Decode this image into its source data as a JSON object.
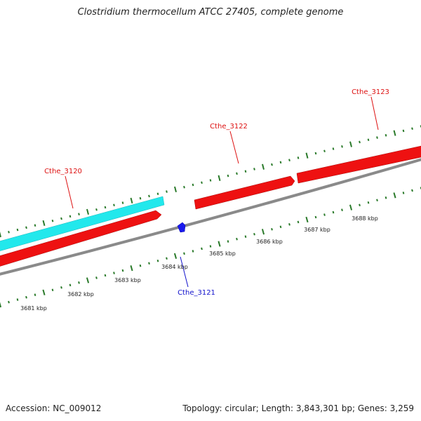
{
  "title": "Clostridium thermocellum ATCC 27405, complete genome",
  "footer": {
    "accession": "Accession: NC_009012",
    "summary": "Topology: circular; Length: 3,843,301 bp; Genes: 3,259"
  },
  "colors": {
    "forward_gene": "#ee1111",
    "reverse_gene": "#1a1aee",
    "other_gene": "#22e8ec",
    "backbone": "#8a8a8a",
    "tick": "#2a7a2a",
    "forward_label": "#dd1111",
    "reverse_label": "#1111cc",
    "axis_label": "#222222"
  },
  "genes": [
    {
      "label": "Cthe_3120",
      "strand": "forward"
    },
    {
      "label": "Cthe_3121",
      "strand": "reverse"
    },
    {
      "label": "Cthe_3122",
      "strand": "forward"
    },
    {
      "label": "Cthe_3123",
      "strand": "forward"
    }
  ],
  "axis_labels": [
    "3681 kbp",
    "3682 kbp",
    "3683 kbp",
    "3684 kbp",
    "3685 kbp",
    "3686 kbp",
    "3687 kbp",
    "3688 kbp"
  ]
}
